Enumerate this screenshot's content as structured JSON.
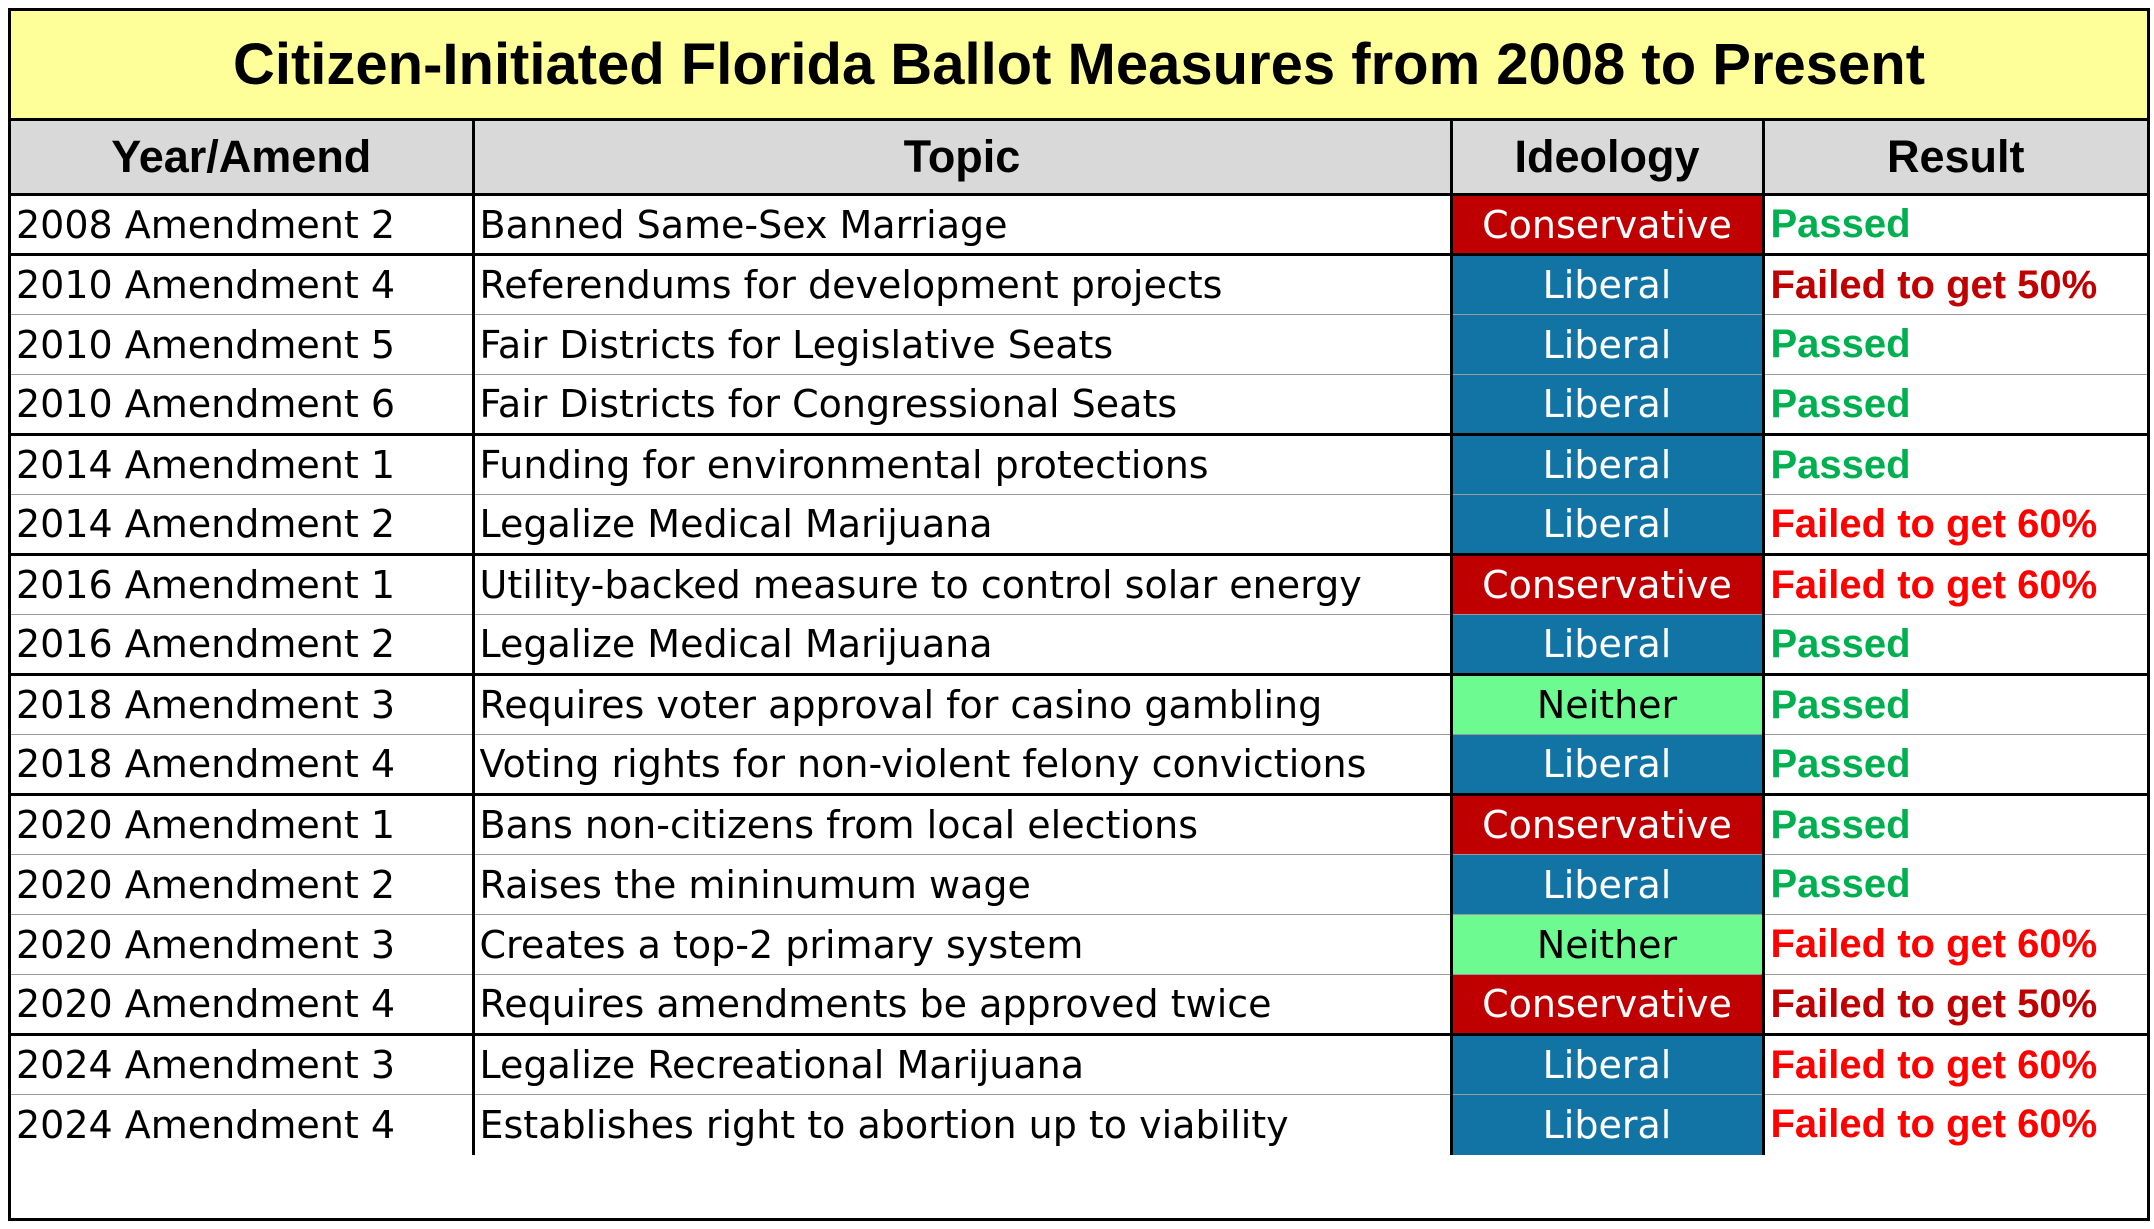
{
  "title": "Citizen-Initiated Florida Ballot Measures from 2008 to Present",
  "headers": [
    "Year/Amend",
    "Topic",
    "Ideology",
    "Result"
  ],
  "colors": {
    "title_bg": "#ffff99",
    "header_bg": "#d9d9d9",
    "Conservative": "#c00000",
    "Liberal": "#1273a5",
    "Neither": "#6dfa90",
    "passed_text": "#00b050",
    "failed50_text": "#c00000",
    "failed60_text": "#ff0000"
  },
  "rows": [
    {
      "year": "2008 Amendment 2",
      "topic": "Banned Same-Sex Marriage",
      "ideology": "Conservative",
      "result": "Passed"
    },
    {
      "year": "2010 Amendment 4",
      "topic": "Referendums for development projects",
      "ideology": "Liberal",
      "result": "Failed to get 50%"
    },
    {
      "year": "2010 Amendment 5",
      "topic": "Fair Districts for Legislative Seats",
      "ideology": "Liberal",
      "result": "Passed"
    },
    {
      "year": "2010 Amendment 6",
      "topic": "Fair Districts for Congressional Seats",
      "ideology": "Liberal",
      "result": "Passed"
    },
    {
      "year": "2014 Amendment 1",
      "topic": "Funding for environmental protections",
      "ideology": "Liberal",
      "result": "Passed"
    },
    {
      "year": "2014 Amendment 2",
      "topic": "Legalize Medical Marijuana",
      "ideology": "Liberal",
      "result": "Failed to get 60%"
    },
    {
      "year": "2016 Amendment 1",
      "topic": "Utility-backed measure to control solar energy",
      "ideology": "Conservative",
      "result": "Failed to get 60%"
    },
    {
      "year": "2016 Amendment 2",
      "topic": "Legalize Medical Marijuana",
      "ideology": "Liberal",
      "result": "Passed"
    },
    {
      "year": "2018 Amendment 3",
      "topic": "Requires voter approval for casino gambling",
      "ideology": "Neither",
      "result": "Passed"
    },
    {
      "year": "2018 Amendment 4",
      "topic": "Voting rights for non-violent felony convictions",
      "ideology": "Liberal",
      "result": "Passed"
    },
    {
      "year": "2020 Amendment 1",
      "topic": "Bans non-citizens from local elections",
      "ideology": "Conservative",
      "result": "Passed"
    },
    {
      "year": "2020 Amendment 2",
      "topic": "Raises the mininumum wage",
      "ideology": "Liberal",
      "result": "Passed"
    },
    {
      "year": "2020 Amendment 3",
      "topic": "Creates a top-2 primary system",
      "ideology": "Neither",
      "result": "Failed to get 60%"
    },
    {
      "year": "2020 Amendment 4",
      "topic": "Requires amendments be approved twice",
      "ideology": "Conservative",
      "result": "Failed to get 50%"
    },
    {
      "year": "2024 Amendment 3",
      "topic": "Legalize Recreational Marijuana",
      "ideology": "Liberal",
      "result": "Failed to get 60%"
    },
    {
      "year": "2024 Amendment 4",
      "topic": "Establishes right to abortion up to viability",
      "ideology": "Liberal",
      "result": "Failed to get 60%"
    }
  ]
}
